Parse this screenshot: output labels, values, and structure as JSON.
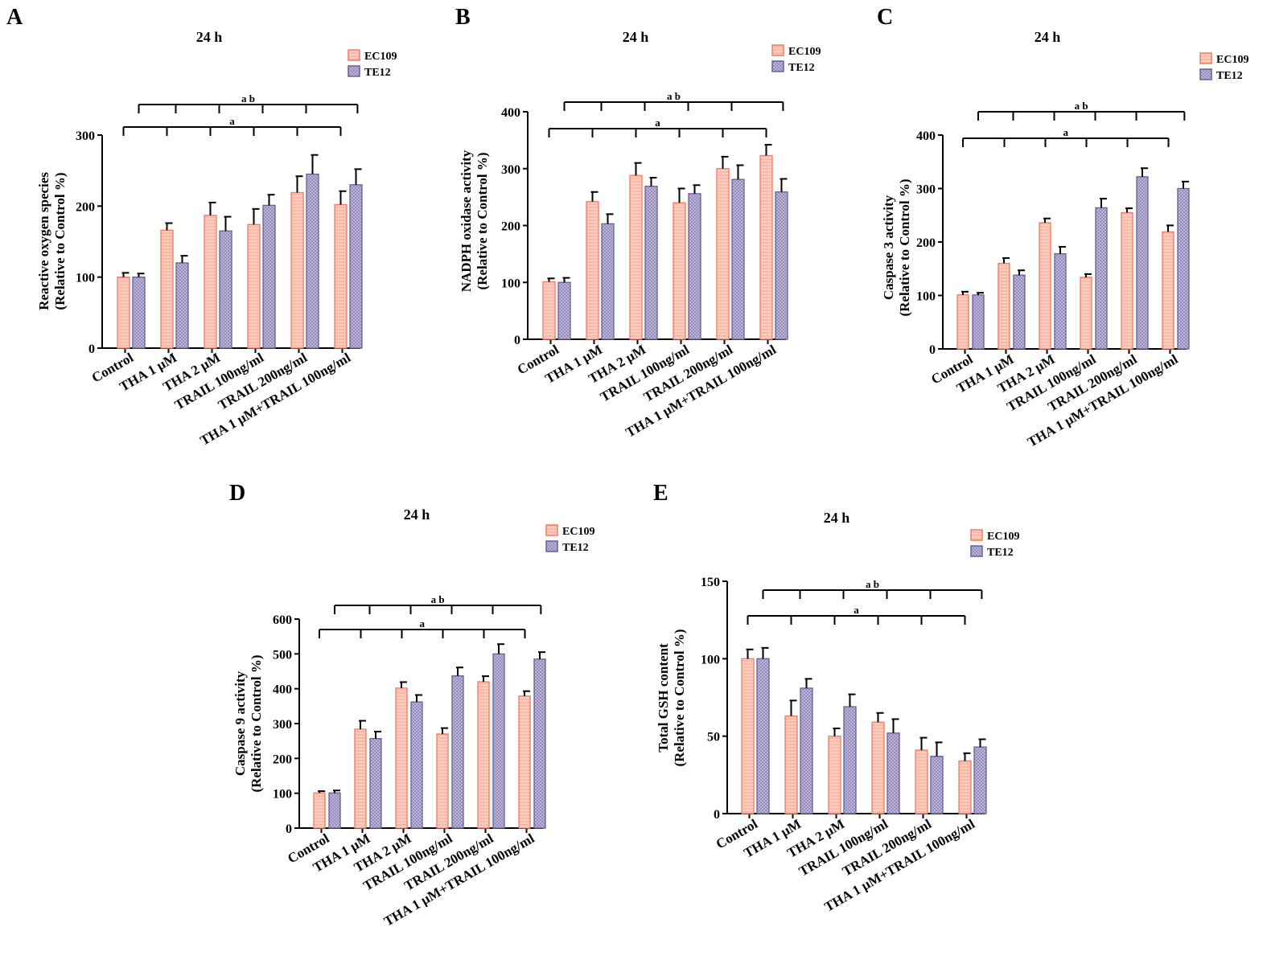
{
  "colors": {
    "ec109_fill": "#fcd0c2",
    "ec109_stroke": "#f07a62",
    "te12_fill": "#c3bbdb",
    "te12_stroke": "#6b5d95"
  },
  "chart_data": [
    {
      "panel": "A",
      "type": "bar",
      "title": "24 h",
      "ylabel": [
        "Reactive oxygen species",
        "(Relative to Control %)"
      ],
      "ylim": [
        0,
        300
      ],
      "yticks": [
        0,
        100,
        200,
        300
      ],
      "categories": [
        "Control",
        "THA 1 μM",
        "THA 2 μM",
        "TRAIL 100ng/ml",
        "TRAIL 200ng/ml",
        "THA 1 μM+TRAIL 100ng/ml"
      ],
      "series": [
        {
          "name": "EC109",
          "values": [
            100,
            166,
            187,
            174,
            219,
            202
          ],
          "errors": [
            6,
            10,
            18,
            22,
            23,
            19
          ]
        },
        {
          "name": "TE12",
          "values": [
            100,
            120,
            165,
            201,
            245,
            230
          ],
          "errors": [
            5,
            10,
            20,
            15,
            27,
            22
          ]
        }
      ],
      "sig_labels": [
        "a b",
        "a"
      ]
    },
    {
      "panel": "B",
      "type": "bar",
      "title": "24 h",
      "ylabel": [
        "NADPH oxidase activity",
        "(Relative to Control %)"
      ],
      "ylim": [
        0,
        400
      ],
      "yticks": [
        0,
        100,
        200,
        300,
        400
      ],
      "categories": [
        "Control",
        "THA 1 μM",
        "THA 2 μM",
        "TRAIL 100ng/ml",
        "TRAIL 200ng/ml",
        "THA 1 μM+TRAIL 100ng/ml"
      ],
      "series": [
        {
          "name": "EC109",
          "values": [
            101,
            242,
            288,
            240,
            300,
            323
          ],
          "errors": [
            6,
            17,
            22,
            25,
            21,
            19
          ]
        },
        {
          "name": "TE12",
          "values": [
            100,
            203,
            269,
            256,
            281,
            259
          ],
          "errors": [
            8,
            17,
            15,
            15,
            25,
            23
          ]
        }
      ],
      "sig_labels": [
        "a b",
        "a"
      ]
    },
    {
      "panel": "C",
      "type": "bar",
      "title": "24 h",
      "ylabel": [
        "Caspase 3 activity",
        "(Relative to Control %)"
      ],
      "ylim": [
        0,
        400
      ],
      "yticks": [
        0,
        100,
        200,
        300,
        400
      ],
      "categories": [
        "Control",
        "THA 1 μM",
        "THA 2 μM",
        "TRAIL 100ng/ml",
        "TRAIL 200ng/ml",
        "THA 1 μM+TRAIL 100ng/ml"
      ],
      "series": [
        {
          "name": "EC109",
          "values": [
            101,
            160,
            236,
            134,
            255,
            219
          ],
          "errors": [
            6,
            10,
            8,
            6,
            8,
            12
          ]
        },
        {
          "name": "TE12",
          "values": [
            101,
            138,
            178,
            264,
            322,
            300
          ],
          "errors": [
            4,
            9,
            13,
            17,
            16,
            13
          ]
        }
      ],
      "sig_labels": [
        "a b",
        "a"
      ]
    },
    {
      "panel": "D",
      "type": "bar",
      "title": "24 h",
      "ylabel": [
        "Caspase 9 activity",
        "(Relative to Control %)"
      ],
      "ylim": [
        0,
        600
      ],
      "yticks": [
        0,
        100,
        200,
        300,
        400,
        500,
        600
      ],
      "categories": [
        "Control",
        "THA 1 μM",
        "THA 2 μM",
        "TRAIL 100ng/ml",
        "TRAIL 200ng/ml",
        "THA 1 μM+TRAIL 100ng/ml"
      ],
      "series": [
        {
          "name": "EC109",
          "values": [
            101,
            284,
            402,
            270,
            420,
            379
          ],
          "errors": [
            5,
            24,
            17,
            17,
            16,
            14
          ]
        },
        {
          "name": "TE12",
          "values": [
            101,
            257,
            362,
            437,
            500,
            485
          ],
          "errors": [
            7,
            20,
            20,
            24,
            28,
            20
          ]
        }
      ],
      "sig_labels": [
        "a b",
        "a"
      ]
    },
    {
      "panel": "E",
      "type": "bar",
      "title": "24 h",
      "ylabel": [
        "Total GSH content",
        "(Relative to Control %)"
      ],
      "ylim": [
        0,
        150
      ],
      "yticks": [
        0,
        50,
        100,
        150
      ],
      "categories": [
        "Control",
        "THA 1 μM",
        "THA 2 μM",
        "TRAIL 100ng/ml",
        "TRAIL 200ng/ml",
        "THA 1 μM+TRAIL 100ng/ml"
      ],
      "series": [
        {
          "name": "EC109",
          "values": [
            100,
            63,
            50,
            59,
            41,
            34
          ],
          "errors": [
            6,
            10,
            5,
            6,
            8,
            5
          ]
        },
        {
          "name": "TE12",
          "values": [
            100,
            81,
            69,
            52,
            37,
            43
          ],
          "errors": [
            7,
            6,
            8,
            9,
            9,
            5
          ]
        }
      ],
      "sig_labels": [
        "a b",
        "a"
      ]
    }
  ]
}
